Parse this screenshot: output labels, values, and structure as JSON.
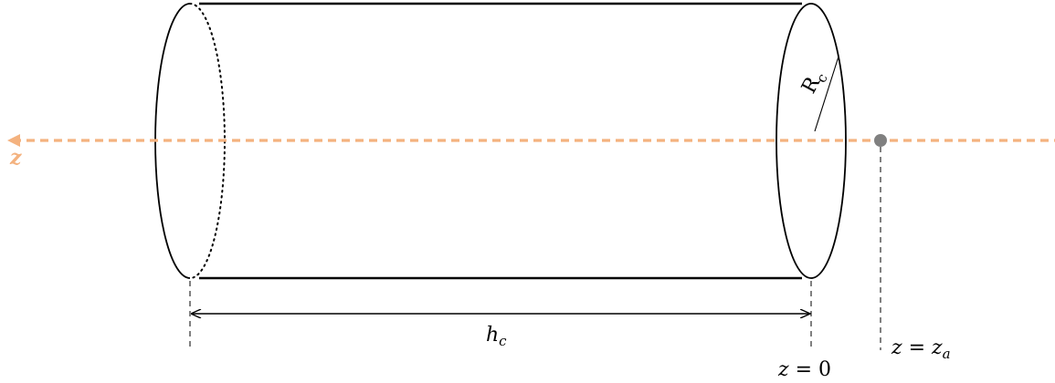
{
  "colors": {
    "axis": "#f4b27f",
    "cylinder": "#000000",
    "observer_point": "#808080",
    "guide": "#000000"
  },
  "labels": {
    "axis": "z",
    "radius_main": "R",
    "radius_sub": "c",
    "length_main": "h",
    "length_sub": "c",
    "origin_var": "z",
    "origin_eq": " = 0",
    "point_var": "z",
    "point_eq": " = ",
    "point_rhs": "z",
    "point_rhs_sub": "a"
  }
}
